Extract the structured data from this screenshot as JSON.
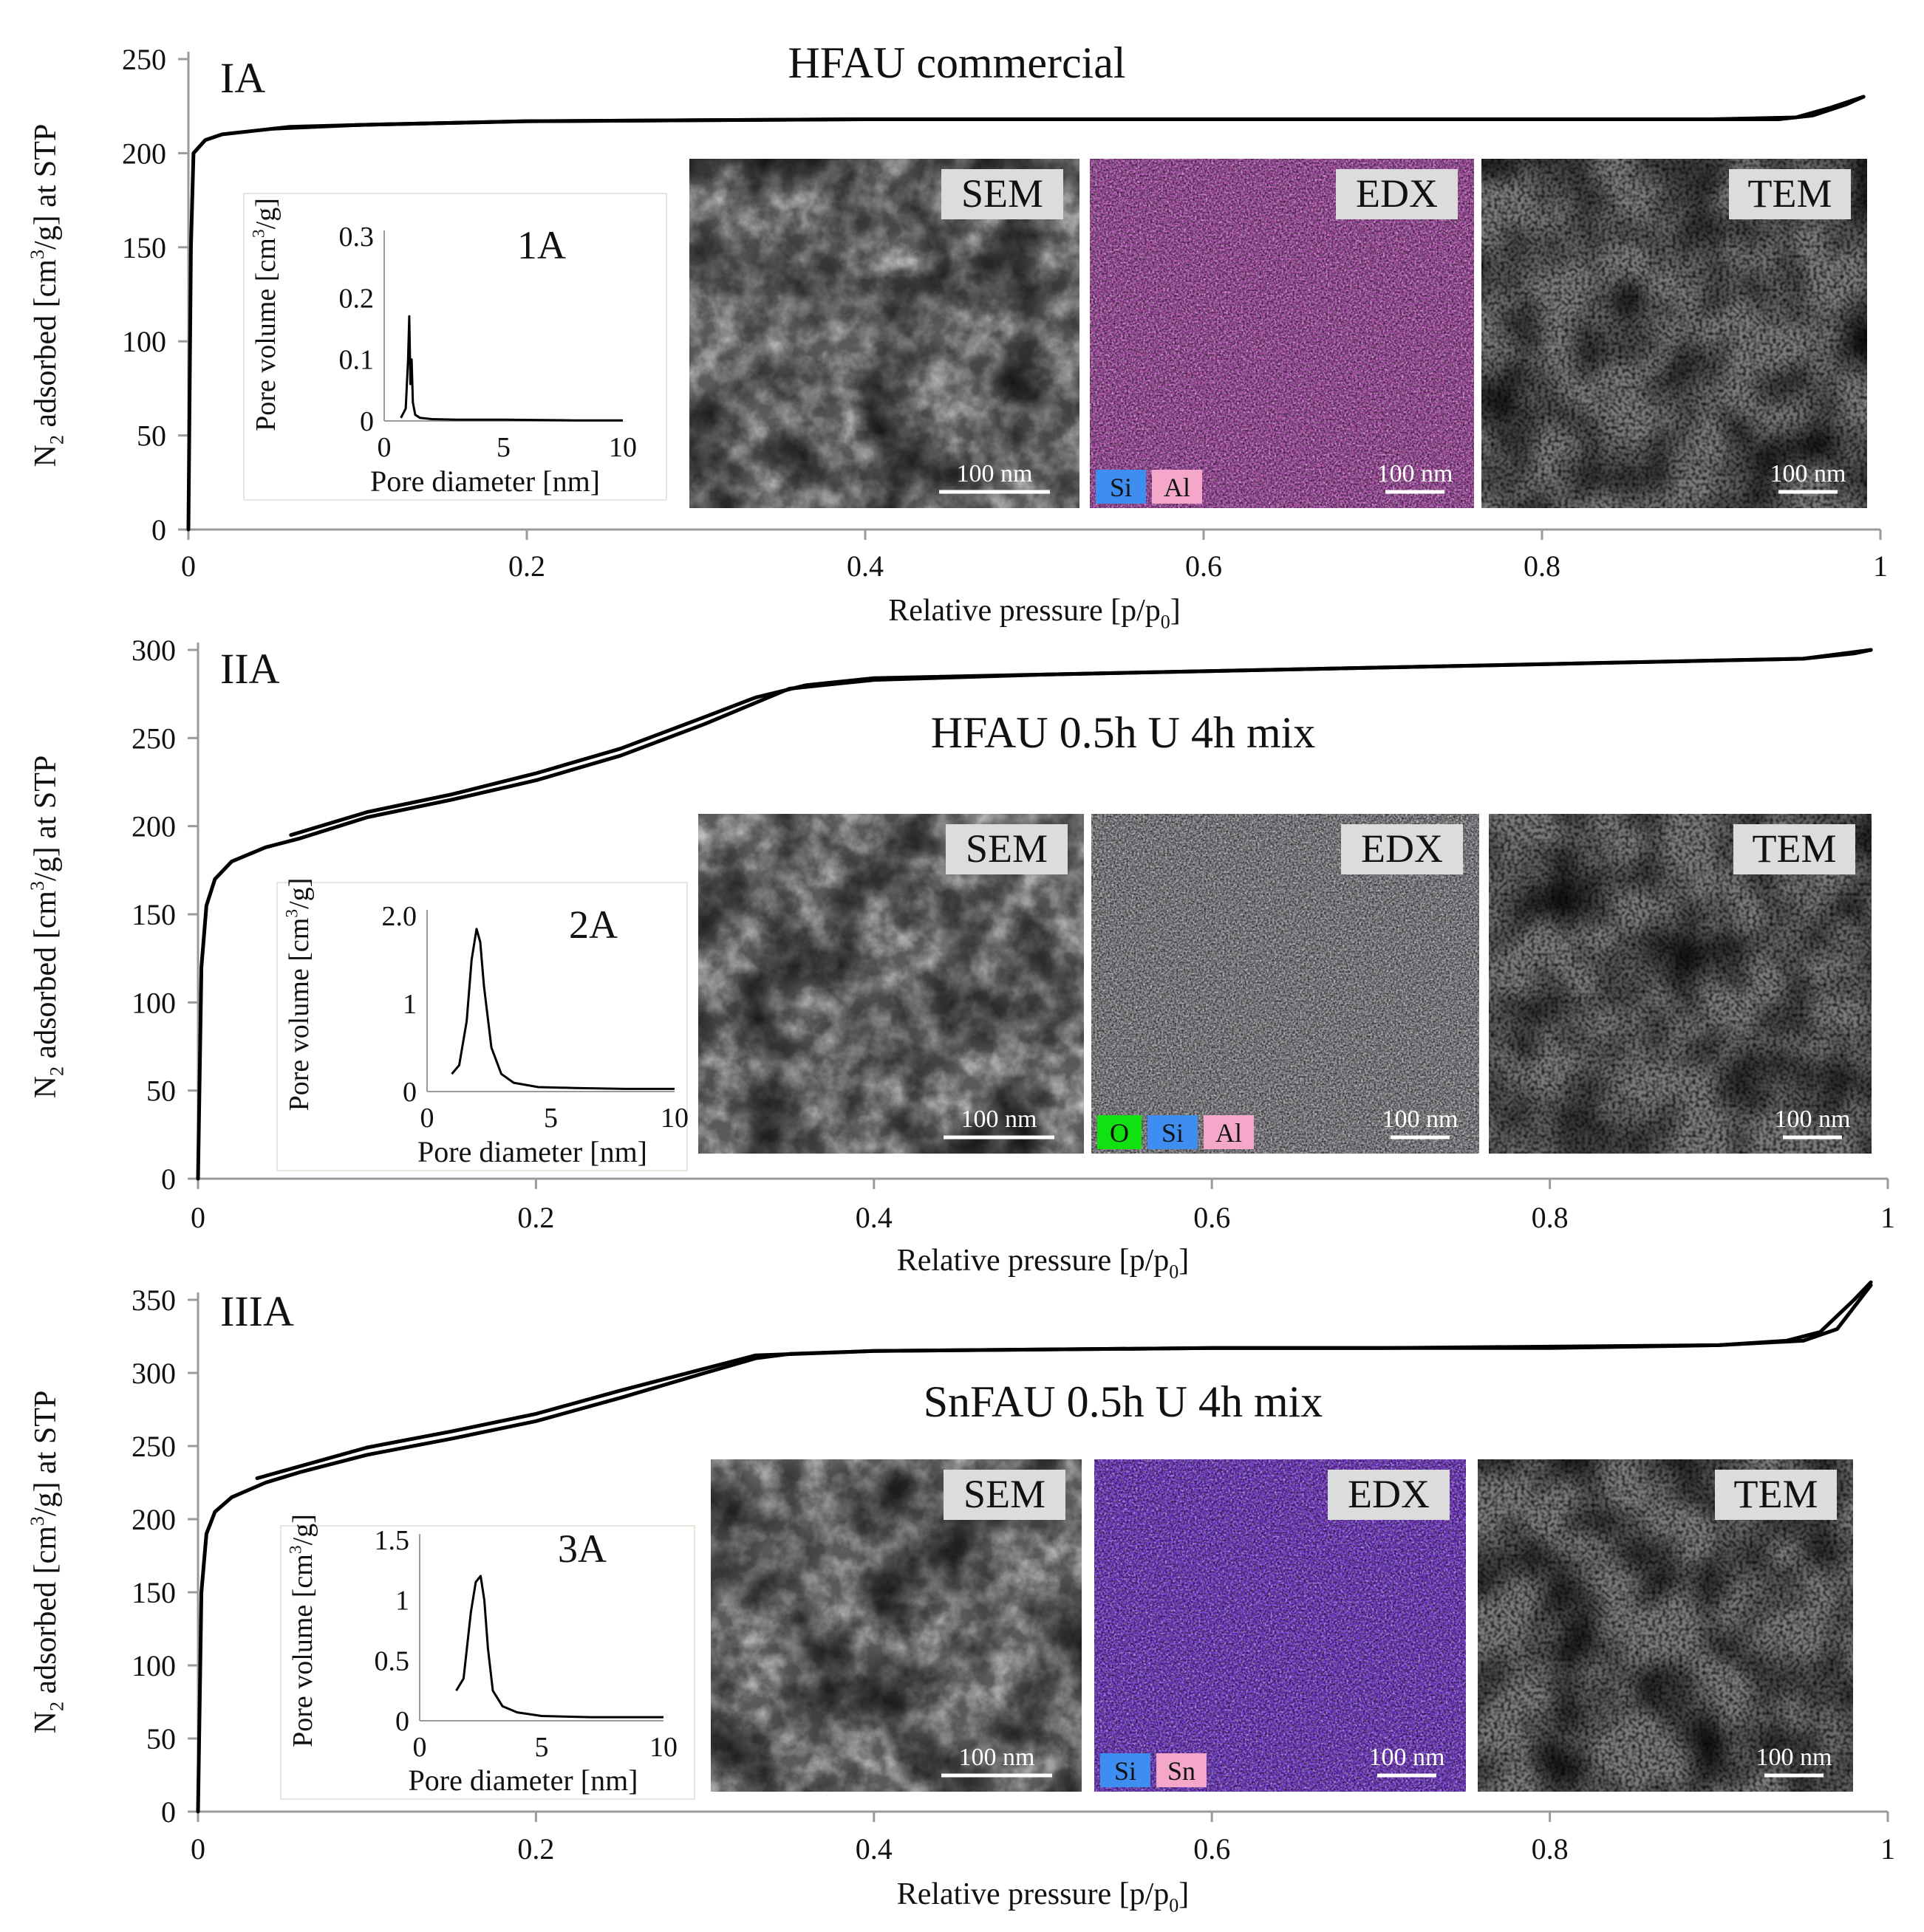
{
  "chart_data": [
    {
      "type": "line",
      "panel_label": "IA",
      "title": "HFAU commercial",
      "xlabel": "Relative pressure [p/p₀]",
      "ylabel": "N₂ adsorbed [cm³/g] at STP",
      "xlim": [
        0,
        1
      ],
      "ylim": [
        0,
        250
      ],
      "xticks": [
        "0",
        "0.2",
        "0.4",
        "0.6",
        "0.8",
        "1"
      ],
      "yticks": [
        "0",
        "50",
        "100",
        "150",
        "200",
        "250"
      ],
      "series": [
        {
          "name": "adsorption",
          "x": [
            0,
            0.0015,
            0.003,
            0.006,
            0.01,
            0.02,
            0.04,
            0.06,
            0.1,
            0.2,
            0.3,
            0.4,
            0.5,
            0.6,
            0.7,
            0.8,
            0.9,
            0.94,
            0.96,
            0.98,
            0.99
          ],
          "y": [
            0,
            150,
            200,
            203,
            207,
            210,
            212,
            214,
            215,
            217,
            217.5,
            218,
            218,
            218,
            218,
            218,
            218,
            218,
            220,
            226,
            230
          ]
        },
        {
          "name": "desorption",
          "x": [
            0.99,
            0.97,
            0.95,
            0.9,
            0.8,
            0.6,
            0.4,
            0.2,
            0.1,
            0.05
          ],
          "y": [
            230,
            224,
            219,
            218,
            218,
            218,
            218,
            217,
            215,
            213
          ]
        }
      ],
      "inset": {
        "label": "1A",
        "xlabel": "Pore diameter [nm]",
        "ylabel": "Pore volume [cm³/g]",
        "xlim": [
          0,
          10
        ],
        "ylim": [
          0,
          0.3
        ],
        "xticks": [
          "0",
          "5",
          "10"
        ],
        "yticks": [
          "0",
          "0.1",
          "0.2",
          "0.3"
        ],
        "x": [
          0.7,
          0.9,
          1.0,
          1.05,
          1.1,
          1.15,
          1.2,
          1.3,
          1.5,
          2,
          3,
          5,
          8,
          10
        ],
        "y": [
          0.005,
          0.02,
          0.1,
          0.17,
          0.06,
          0.1,
          0.03,
          0.01,
          0.005,
          0.003,
          0.002,
          0.002,
          0.001,
          0.001
        ]
      },
      "images": [
        {
          "label": "SEM",
          "scalebar": "100 nm"
        },
        {
          "label": "EDX",
          "scalebar": "100 nm",
          "legend": [
            "Si",
            "Al"
          ]
        },
        {
          "label": "TEM",
          "scalebar": "100 nm"
        }
      ]
    },
    {
      "type": "line",
      "panel_label": "IIA",
      "title": "HFAU 0.5h U 4h mix",
      "xlabel": "Relative pressure [p/p₀]",
      "ylabel": "N₂ adsorbed [cm³/g] at STP",
      "xlim": [
        0,
        1
      ],
      "ylim": [
        0,
        300
      ],
      "xticks": [
        "0",
        "0.2",
        "0.4",
        "0.6",
        "0.8",
        "1"
      ],
      "yticks": [
        "0",
        "50",
        "100",
        "150",
        "200",
        "250",
        "300"
      ],
      "series": [
        {
          "name": "adsorption",
          "x": [
            0,
            0.002,
            0.005,
            0.01,
            0.02,
            0.04,
            0.06,
            0.1,
            0.15,
            0.2,
            0.25,
            0.3,
            0.33,
            0.35,
            0.4,
            0.5,
            0.6,
            0.7,
            0.8,
            0.9,
            0.95,
            0.98,
            0.99
          ],
          "y": [
            0,
            120,
            155,
            170,
            180,
            188,
            193,
            205,
            215,
            226,
            240,
            258,
            270,
            278,
            283,
            286,
            288,
            290,
            292,
            294,
            295,
            298,
            300
          ]
        },
        {
          "name": "desorption",
          "x": [
            0.99,
            0.95,
            0.9,
            0.8,
            0.6,
            0.4,
            0.36,
            0.33,
            0.3,
            0.25,
            0.2,
            0.15,
            0.1,
            0.055
          ],
          "y": [
            300,
            295,
            294,
            292,
            288,
            284,
            280,
            273,
            262,
            244,
            230,
            218,
            208,
            195
          ]
        }
      ],
      "inset": {
        "label": "2A",
        "xlabel": "Pore diameter [nm]",
        "ylabel": "Pore volume [cm³/g]",
        "xlim": [
          0,
          10
        ],
        "ylim": [
          0,
          2.0
        ],
        "xticks": [
          "0",
          "5",
          "10"
        ],
        "yticks": [
          "0",
          "1",
          "2.0"
        ],
        "x": [
          1.0,
          1.3,
          1.6,
          1.8,
          2.0,
          2.15,
          2.3,
          2.6,
          3.0,
          3.5,
          4.5,
          6,
          8,
          10
        ],
        "y": [
          0.2,
          0.3,
          0.8,
          1.5,
          1.85,
          1.7,
          1.2,
          0.5,
          0.2,
          0.1,
          0.05,
          0.04,
          0.03,
          0.03
        ]
      },
      "images": [
        {
          "label": "SEM",
          "scalebar": "100 nm"
        },
        {
          "label": "EDX",
          "scalebar": "100 nm",
          "legend": [
            "O",
            "Si",
            "Al"
          ]
        },
        {
          "label": "TEM",
          "scalebar": "100 nm"
        }
      ]
    },
    {
      "type": "line",
      "panel_label": "IIIA",
      "title": "SnFAU 0.5h U 4h mix",
      "xlabel": "Relative pressure [p/p₀]",
      "ylabel": "N₂ adsorbed [cm³/g] at STP",
      "xlim": [
        0,
        1
      ],
      "ylim": [
        0,
        350
      ],
      "xticks": [
        "0",
        "0.2",
        "0.4",
        "0.6",
        "0.8",
        "1"
      ],
      "yticks": [
        "0",
        "50",
        "100",
        "150",
        "200",
        "250",
        "300",
        "350"
      ],
      "series": [
        {
          "name": "adsorption",
          "x": [
            0,
            0.002,
            0.005,
            0.01,
            0.02,
            0.04,
            0.06,
            0.1,
            0.15,
            0.2,
            0.25,
            0.3,
            0.33,
            0.35,
            0.4,
            0.5,
            0.6,
            0.7,
            0.8,
            0.9,
            0.95,
            0.97,
            0.98,
            0.99
          ],
          "y": [
            0,
            150,
            190,
            205,
            215,
            225,
            232,
            244,
            255,
            267,
            283,
            300,
            310,
            313,
            315,
            316,
            317,
            317,
            318,
            319,
            322,
            330,
            345,
            360
          ]
        },
        {
          "name": "desorption",
          "x": [
            0.99,
            0.98,
            0.96,
            0.94,
            0.9,
            0.8,
            0.6,
            0.4,
            0.33,
            0.3,
            0.25,
            0.2,
            0.15,
            0.1,
            0.035
          ],
          "y": [
            362,
            350,
            328,
            322,
            319,
            317,
            317,
            315,
            312,
            303,
            288,
            272,
            260,
            249,
            228
          ]
        }
      ],
      "inset": {
        "label": "3A",
        "xlabel": "Pore diameter [nm]",
        "ylabel": "Pore volume [cm³/g]",
        "xlim": [
          0,
          10
        ],
        "ylim": [
          0,
          1.5
        ],
        "xticks": [
          "0",
          "5",
          "10"
        ],
        "yticks": [
          "0",
          "0.5",
          "1",
          "1.5"
        ],
        "x": [
          1.5,
          1.8,
          2.1,
          2.3,
          2.5,
          2.65,
          2.8,
          3.0,
          3.4,
          4.0,
          5,
          7,
          10
        ],
        "y": [
          0.25,
          0.35,
          0.9,
          1.15,
          1.2,
          1.0,
          0.6,
          0.25,
          0.12,
          0.07,
          0.04,
          0.03,
          0.03
        ]
      },
      "images": [
        {
          "label": "SEM",
          "scalebar": "100 nm"
        },
        {
          "label": "EDX",
          "scalebar": "100 nm",
          "legend": [
            "Si",
            "Sn"
          ]
        },
        {
          "label": "TEM",
          "scalebar": "100 nm"
        }
      ]
    }
  ],
  "colors": {
    "legend_O": "#11e011",
    "legend_Si": "#3d8ef0",
    "legend_Al": "#f4a7c8",
    "legend_Sn": "#f4a7c8",
    "label_bg": "#dcdcdc",
    "sem_bg": "#5a5a5a",
    "edx1_bg": "#b04fae",
    "edx2_bg": "#8c8a8f",
    "edx3_bg": "#7a3bd6",
    "tem_bg": "#4b4b4b"
  }
}
